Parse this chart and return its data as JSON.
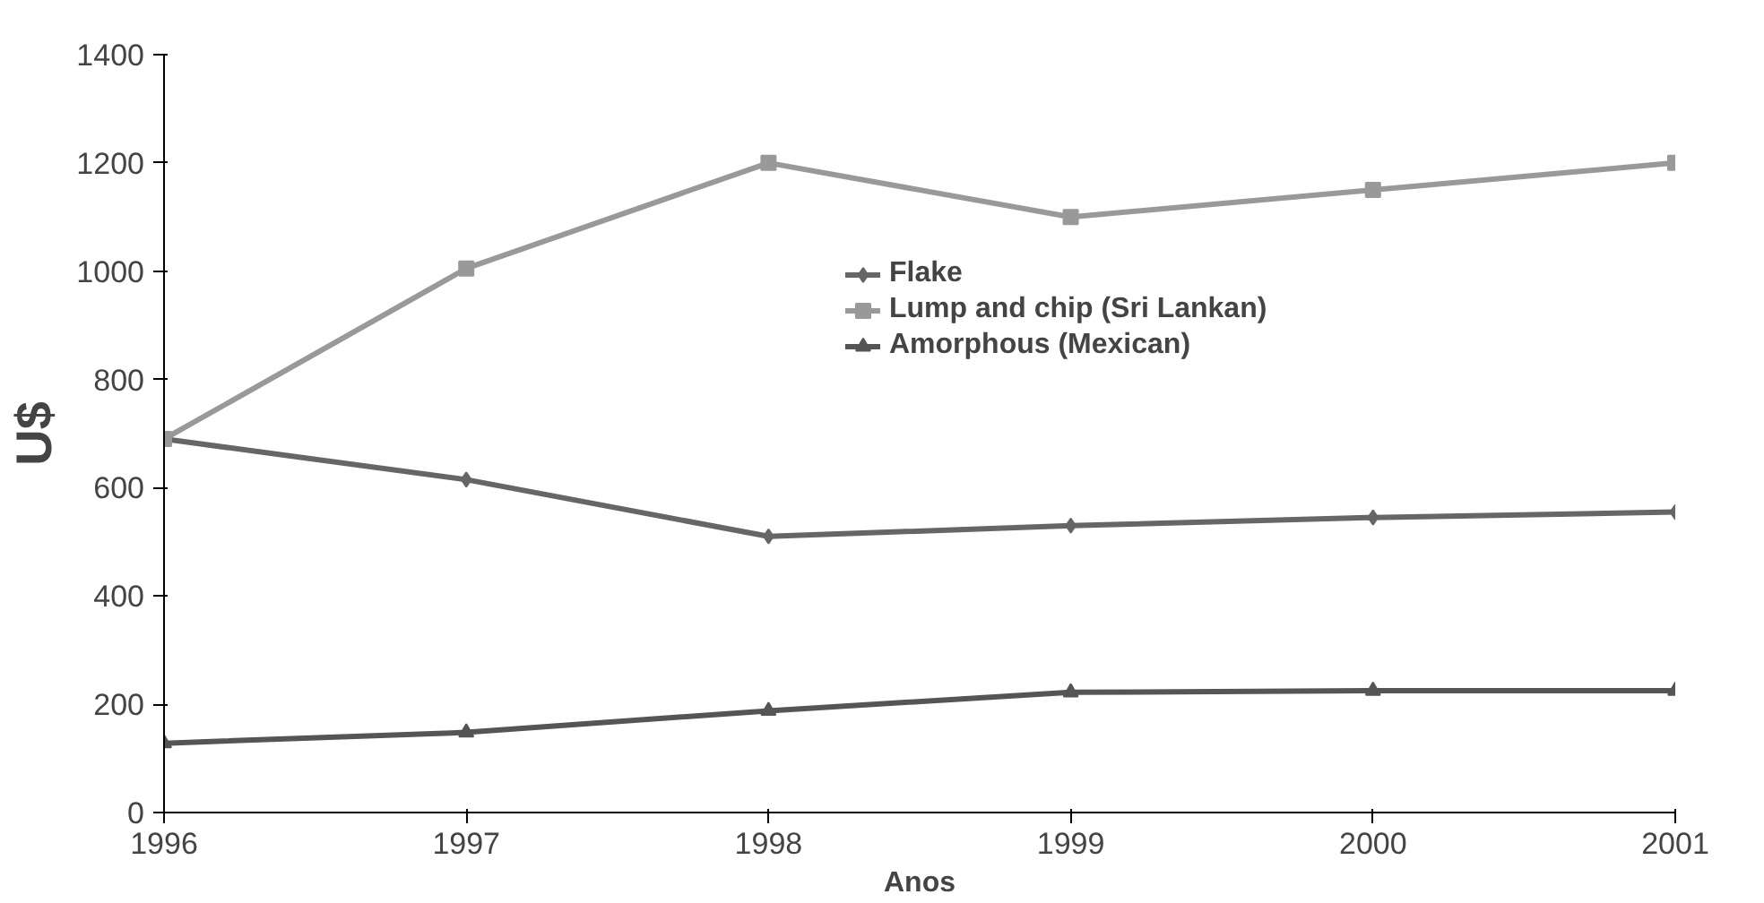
{
  "chart_data": {
    "type": "line",
    "xlabel": "Anos",
    "ylabel": "U$",
    "x": [
      1996,
      1997,
      1998,
      1999,
      2000,
      2001
    ],
    "xlim": [
      1996,
      2001
    ],
    "xticks": [
      1996,
      1997,
      1998,
      1999,
      2000,
      2001
    ],
    "ylim": [
      0,
      1400
    ],
    "yticks": [
      0,
      200,
      400,
      600,
      800,
      1000,
      1200,
      1400
    ],
    "grid": false,
    "legend": "top",
    "series": [
      {
        "name": "Flake",
        "color": "#666666",
        "marker": "diamond",
        "values": [
          690,
          615,
          510,
          530,
          545,
          555
        ]
      },
      {
        "name": "Lump and chip (Sri Lankan)",
        "color": "#999999",
        "marker": "square",
        "values": [
          690,
          1005,
          1200,
          1100,
          1150,
          1200
        ]
      },
      {
        "name": "Amorphous (Mexican)",
        "color": "#555555",
        "marker": "triangle",
        "values": [
          128,
          148,
          188,
          222,
          225,
          225
        ]
      }
    ]
  }
}
